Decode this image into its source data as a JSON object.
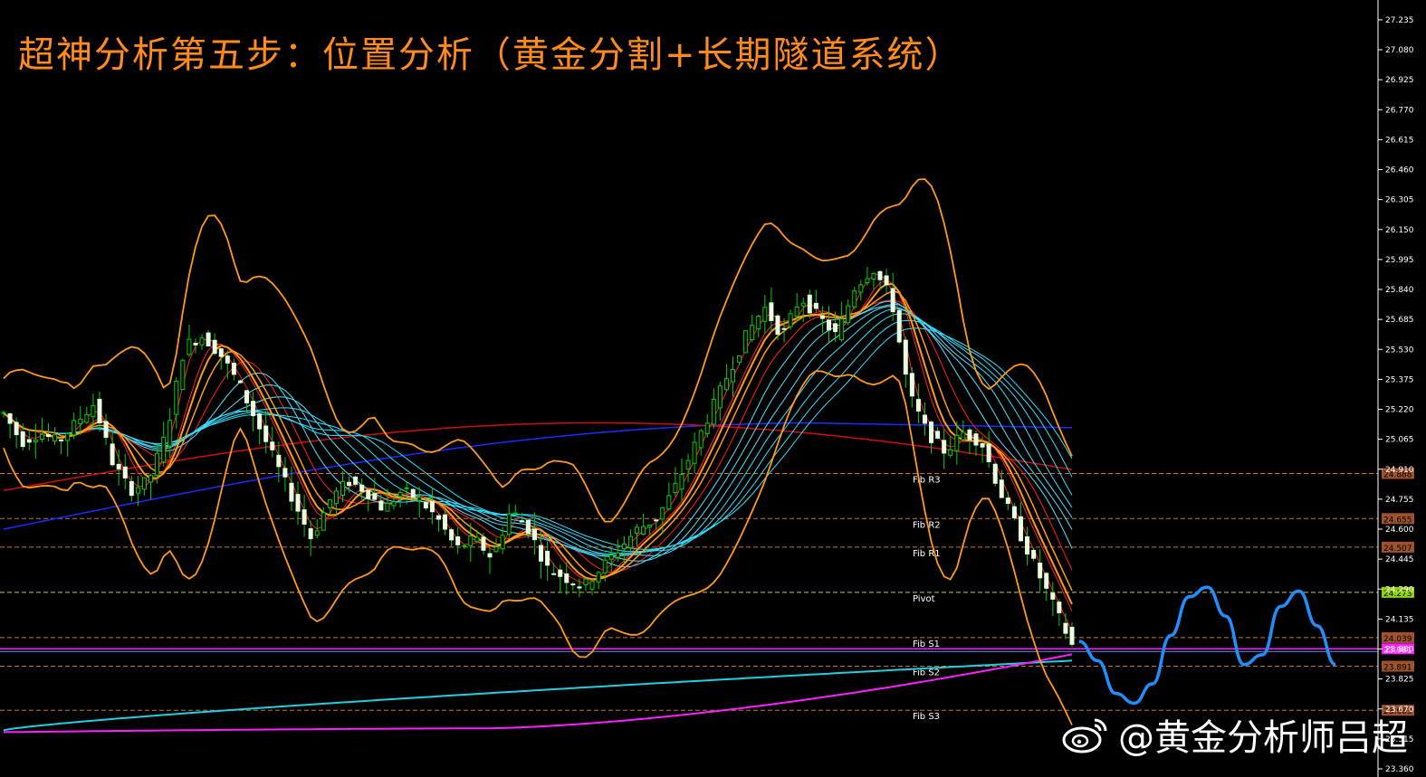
{
  "title": "超神分析第五步：位置分析（黄金分割+长期隧道系统）",
  "watermark": "@黄金分析师吕超",
  "colors": {
    "background": "#000000",
    "title": "#ff8c1a",
    "bollinger": "#ff9a1a",
    "candle_up": "#00d000",
    "candle_down": "#e8ffe0",
    "fast_ribbon": "#ff2020",
    "slow_ribbon": "#30e0ff",
    "ma_blue": "#1a2cff",
    "ma_red": "#cc1010",
    "tunnel_cyan": "#20d0e0",
    "tunnel_magenta": "#ff20ff",
    "forecast": "#1e90ff",
    "level_line": "#c87830"
  },
  "chart_data": {
    "type": "candlestick",
    "title": "超神分析第五步：位置分析（黄金分割+长期隧道系统）",
    "ylim": [
      23.36,
      27.3
    ],
    "y_ticks": [
      "27.235",
      "27.080",
      "26.925",
      "26.770",
      "26.615",
      "26.460",
      "26.305",
      "26.150",
      "25.995",
      "25.840",
      "25.685",
      "25.530",
      "25.375",
      "25.220",
      "25.065",
      "24.910",
      "24.755",
      "24.600",
      "24.445",
      "24.290",
      "24.135",
      "23.980",
      "23.825",
      "23.670",
      "23.515",
      "23.360"
    ],
    "pivot_levels": [
      {
        "name": "Fib R3",
        "value": 24.888,
        "label": "24.888",
        "tag_color": "#a0522d"
      },
      {
        "name": "Fib R2",
        "value": 24.655,
        "label": "24.655",
        "tag_color": "#a0522d"
      },
      {
        "name": "Fib R1",
        "value": 24.507,
        "label": "24.507",
        "tag_color": "#a0522d"
      },
      {
        "name": "Pivot",
        "value": 24.273,
        "label": "24.273",
        "tag_color": "#8fd400"
      },
      {
        "name": "Fib S1",
        "value": 24.039,
        "label": "24.039",
        "tag_color": "#a0522d"
      },
      {
        "name": "Fib S2",
        "value": 23.891,
        "label": "23.891",
        "tag_color": "#a0522d"
      },
      {
        "name": "Fib S3",
        "value": 23.663,
        "label": "23.663",
        "tag_color": "#a0522d"
      }
    ],
    "current_price": {
      "value": 23.981,
      "label": "23.981",
      "color": "#ff20ff"
    },
    "close_path": [
      25.2,
      25.05,
      25.1,
      25.05,
      25.15,
      25.25,
      24.95,
      24.8,
      24.85,
      25.1,
      25.55,
      25.6,
      25.5,
      25.35,
      25.15,
      24.95,
      24.75,
      24.55,
      24.75,
      24.85,
      24.8,
      24.7,
      24.8,
      24.75,
      24.65,
      24.5,
      24.55,
      24.45,
      24.7,
      24.6,
      24.4,
      24.35,
      24.3,
      24.4,
      24.5,
      24.6,
      24.65,
      24.8,
      25.0,
      25.2,
      25.4,
      25.6,
      25.75,
      25.6,
      25.8,
      25.7,
      25.6,
      25.85,
      25.95,
      25.8,
      25.3,
      25.1,
      25.0,
      25.1,
      25.05,
      24.8,
      24.6,
      24.4,
      24.2,
      24.0
    ],
    "forecast_path": [
      24.02,
      23.92,
      23.75,
      23.7,
      23.8,
      24.05,
      24.25,
      24.3,
      24.15,
      23.9,
      23.95,
      24.2,
      24.28,
      24.1,
      23.9
    ]
  }
}
